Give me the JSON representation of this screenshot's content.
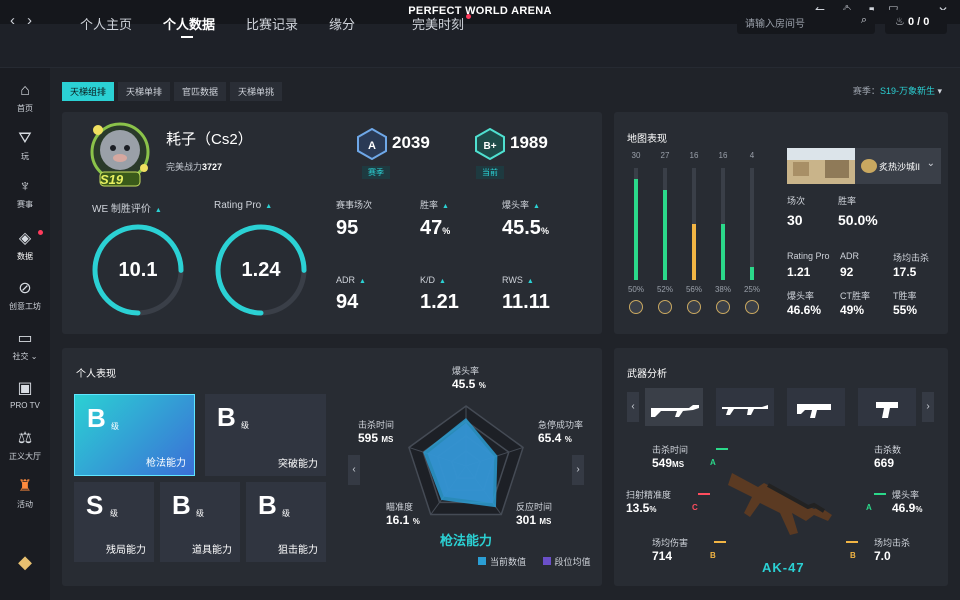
{
  "app": {
    "title": "PERFECT WORLD ARENA"
  },
  "nav": {
    "tabs": [
      "个人主页",
      "个人数据",
      "比赛记录",
      "缘分",
      "完美时刻"
    ],
    "search_placeholder": "请输入房间号",
    "coins": "0 / 0"
  },
  "sidebar": [
    "首页",
    "玩",
    "赛事",
    "数据",
    "创意工坊",
    "社交",
    "PRO TV",
    "正义大厅",
    "活动"
  ],
  "subtabs": [
    "天梯组排",
    "天梯单排",
    "官匹数据",
    "天梯单挑"
  ],
  "season": {
    "label": "赛季：",
    "value": "S19-万象新生"
  },
  "profile": {
    "name": "耗子（Cs2）",
    "power_label": "完美战力",
    "power": "3727",
    "badge": "S19"
  },
  "ranks": [
    {
      "score": "2039",
      "label": "赛季",
      "letter": "A"
    },
    {
      "score": "1989",
      "label": "当前",
      "letter": "B+"
    }
  ],
  "gauges": [
    {
      "label": "WE 制胜评价",
      "value": "10.1",
      "fraction": 0.75
    },
    {
      "label": "Rating Pro",
      "value": "1.24",
      "fraction": 0.75
    }
  ],
  "stats": [
    {
      "label": "赛事场次",
      "value": "95",
      "unit": ""
    },
    {
      "label": "胜率",
      "value": "47",
      "unit": "%"
    },
    {
      "label": "爆头率",
      "value": "45.5",
      "unit": "%"
    },
    {
      "label": "ADR",
      "value": "94",
      "unit": ""
    },
    {
      "label": "K/D",
      "value": "1.21",
      "unit": ""
    },
    {
      "label": "RWS",
      "value": "11.11",
      "unit": ""
    }
  ],
  "maps": {
    "title": "地图表现",
    "items": [
      {
        "count": "30",
        "pct": "50%",
        "fill": 0.9,
        "color": "#2bd98a"
      },
      {
        "count": "27",
        "pct": "52%",
        "fill": 0.8,
        "color": "#2bd98a"
      },
      {
        "count": "16",
        "pct": "56%",
        "fill": 0.5,
        "color": "#f2b544"
      },
      {
        "count": "16",
        "pct": "38%",
        "fill": 0.5,
        "color": "#2bd98a"
      },
      {
        "count": "4",
        "pct": "25%",
        "fill": 0.12,
        "color": "#2bd98a"
      }
    ],
    "selected_map": "炙热沙城II",
    "detail": [
      {
        "label": "场次",
        "value": "30"
      },
      {
        "label": "胜率",
        "value": "50.0%"
      },
      {
        "label": "Rating Pro",
        "value": "1.21"
      },
      {
        "label": "ADR",
        "value": "92"
      },
      {
        "label": "场均击杀",
        "value": "17.5"
      },
      {
        "label": "爆头率",
        "value": "46.6%"
      },
      {
        "label": "CT胜率",
        "value": "49%"
      },
      {
        "label": "T胜率",
        "value": "55%"
      }
    ]
  },
  "personal": {
    "title": "个人表现",
    "grades": [
      {
        "grade": "B",
        "lv": "级",
        "name": "枪法能力"
      },
      {
        "grade": "B",
        "lv": "级",
        "name": "突破能力"
      },
      {
        "grade": "S",
        "lv": "级",
        "name": "残局能力"
      },
      {
        "grade": "B",
        "lv": "级",
        "name": "道具能力"
      },
      {
        "grade": "B",
        "lv": "级",
        "name": "狙击能力"
      }
    ],
    "radar": {
      "center_label": "枪法能力",
      "axes": [
        {
          "label": "爆头率",
          "value": "45.5",
          "unit": "%",
          "fraction": 0.8
        },
        {
          "label": "急停成功率",
          "value": "65.4",
          "unit": "%",
          "fraction": 0.55
        },
        {
          "label": "反应时间",
          "value": "301",
          "unit": "MS",
          "fraction": 0.85
        },
        {
          "label": "瞄准度",
          "value": "16.1",
          "unit": "%",
          "fraction": 0.7
        },
        {
          "label": "击杀时间",
          "value": "595",
          "unit": "MS",
          "fraction": 0.75
        }
      ],
      "legend": [
        "当前数值",
        "段位均值"
      ]
    }
  },
  "weapons": {
    "title": "武器分析",
    "selected": "AK-47",
    "stats": [
      {
        "label": "击杀时间",
        "value": "549",
        "unit": "MS",
        "grade": "A"
      },
      {
        "label": "击杀数",
        "value": "669",
        "unit": "",
        "grade": ""
      },
      {
        "label": "扫射精准度",
        "value": "13.5",
        "unit": "%",
        "grade": "C"
      },
      {
        "label": "爆头率",
        "value": "46.9",
        "unit": "%",
        "grade": "A"
      },
      {
        "label": "场均伤害",
        "value": "714",
        "unit": "",
        "grade": "B"
      },
      {
        "label": "场均击杀",
        "value": "7.0",
        "unit": "",
        "grade": "B"
      }
    ]
  },
  "colors": {
    "accent": "#2bd1d4",
    "grade_a": "#2bd98a",
    "grade_b": "#f2b544",
    "grade_c": "#ff4d5e"
  }
}
